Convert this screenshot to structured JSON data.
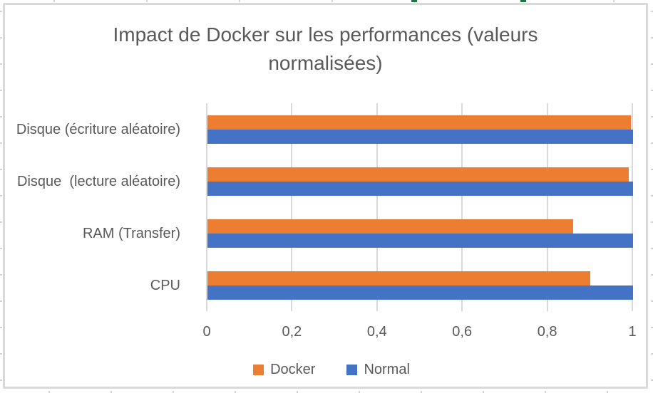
{
  "chart_data": {
    "type": "bar",
    "orientation": "horizontal",
    "title": "Impact de Docker sur les performances (valeurs normalisées)",
    "categories": [
      "Disque (écriture aléatoire)",
      "Disque  (lecture aléatoire)",
      "RAM (Transfer)",
      "CPU"
    ],
    "series": [
      {
        "name": "Docker",
        "color": "#ED7D31",
        "values": [
          0.995,
          0.99,
          0.86,
          0.9
        ]
      },
      {
        "name": "Normal",
        "color": "#4472C4",
        "values": [
          1.0,
          1.0,
          1.0,
          1.0
        ]
      }
    ],
    "xlim": [
      0,
      1
    ],
    "xticks": [
      0,
      0.2,
      0.4,
      0.6,
      0.8,
      1
    ],
    "xtick_labels": [
      "0",
      "0,2",
      "0,4",
      "0,6",
      "0,8",
      "1"
    ],
    "grid": true,
    "legend_position": "bottom",
    "colors": {
      "text": "#595959",
      "gridline": "#D9D9D9",
      "chart_border": "#D9D9D9",
      "sheet_tick": "#D4D4D4",
      "sheet_accent_green": "#217346"
    }
  }
}
